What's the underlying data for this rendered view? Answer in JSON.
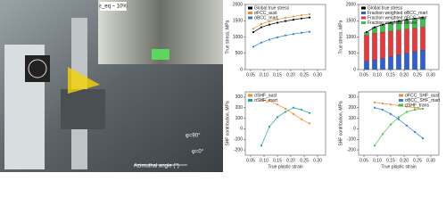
{
  "photo": {
    "strain_label": "ε_eq ~ 10%",
    "angle_90": "φ=90°",
    "angle_0": "φ=0°",
    "axis_label": "Azimuthal angle (°)"
  },
  "chart_data": [
    {
      "type": "line",
      "ylabel": "True stress, MPa",
      "xlim": [
        0.03,
        0.33
      ],
      "xticks": [
        0.05,
        {
          "value": 0.1,
          "label": "0.10"
        },
        0.15,
        {
          "value": 0.2,
          "label": "0.20"
        },
        0.25,
        {
          "value": 0.3,
          "label": "0.30"
        }
      ],
      "ylim": [
        0,
        2000
      ],
      "yticks": [
        0,
        500,
        1000,
        1500,
        2000
      ],
      "legend": "top-left",
      "x": [
        0.06,
        0.09,
        0.12,
        0.15,
        0.18,
        0.21,
        0.24,
        0.27
      ],
      "series": [
        {
          "name": "Global true stress",
          "color": "#000000",
          "values": [
            1150,
            1300,
            1380,
            1440,
            1490,
            1530,
            1570,
            1600
          ]
        },
        {
          "name": "σFCC_aust",
          "color": "#f28c28",
          "values": [
            1250,
            1400,
            1480,
            1540,
            1590,
            1630,
            1670,
            1700
          ]
        },
        {
          "name": "σBCC_mart",
          "color": "#2f7fd1",
          "values": [
            700,
            830,
            920,
            990,
            1050,
            1090,
            1130,
            1160
          ]
        }
      ]
    },
    {
      "type": "stacked-bar",
      "ylabel": "True stress, MPa",
      "xlim": [
        0.03,
        0.33
      ],
      "xticks": [
        0.05,
        {
          "value": 0.1,
          "label": "0.10"
        },
        0.15,
        {
          "value": 0.2,
          "label": "0.20"
        },
        0.25,
        {
          "value": 0.3,
          "label": "0.30"
        }
      ],
      "ylim": [
        0,
        2000
      ],
      "yticks": [
        0,
        500,
        1000,
        1500,
        2000
      ],
      "legend": "top-left",
      "x": [
        0.06,
        0.09,
        0.12,
        0.15,
        0.18,
        0.21,
        0.24,
        0.27
      ],
      "series": [
        {
          "name": "Global true stress",
          "color": "#000000",
          "type": "line",
          "values": [
            1150,
            1300,
            1380,
            1440,
            1490,
            1530,
            1570,
            1600
          ]
        },
        {
          "name": "Fraction weighted σBCC_mart",
          "color": "#2f5fd6",
          "type": "bar",
          "values": [
            250,
            300,
            350,
            400,
            450,
            500,
            550,
            600
          ]
        },
        {
          "name": "Fraction weighted σFCC_aust",
          "color": "#e8383b",
          "type": "bar",
          "values": [
            800,
            820,
            800,
            780,
            760,
            740,
            720,
            700
          ]
        },
        {
          "name": "Fraction weighted σtrans",
          "color": "#3fbf4f",
          "type": "bar",
          "values": [
            100,
            180,
            230,
            260,
            280,
            290,
            300,
            300
          ]
        }
      ]
    },
    {
      "type": "line",
      "ylabel": "SHF contribution, MPa",
      "xlabel": "True plastic strain",
      "xlim": [
        0.03,
        0.33
      ],
      "xticks": [
        0.05,
        {
          "value": 0.1,
          "label": "0.10"
        },
        0.15,
        {
          "value": 0.2,
          "label": "0.20"
        },
        0.25,
        {
          "value": 0.3,
          "label": "0.30"
        }
      ],
      "ylim": [
        -250,
        350
      ],
      "yticks": [
        -200,
        -100,
        0,
        100,
        200,
        300
      ],
      "legend": "top-left",
      "x": [
        0.09,
        0.12,
        0.15,
        0.18,
        0.21,
        0.24,
        0.27
      ],
      "series": [
        {
          "name": "σSHF_aust",
          "color": "#f28c28",
          "values": [
            270,
            265,
            230,
            190,
            140,
            90,
            50
          ]
        },
        {
          "name": "σSHF_mart",
          "color": "#1aa39a",
          "values": [
            -160,
            20,
            110,
            160,
            200,
            180,
            150
          ]
        }
      ]
    },
    {
      "type": "line",
      "ylabel": "SHF contribution, MPa",
      "xlabel": "True plastic strain",
      "xlim": [
        0.03,
        0.33
      ],
      "xticks": [
        0.05,
        {
          "value": 0.1,
          "label": "0.10"
        },
        0.15,
        {
          "value": 0.2,
          "label": "0.20"
        },
        0.25,
        {
          "value": 0.3,
          "label": "0.30"
        }
      ],
      "ylim": [
        -250,
        350
      ],
      "yticks": [
        -200,
        -100,
        0,
        100,
        200,
        300
      ],
      "legend": "top-right",
      "x": [
        0.09,
        0.12,
        0.15,
        0.18,
        0.21,
        0.24,
        0.27
      ],
      "series": [
        {
          "name": "σFCC_SHF_aust",
          "color": "#f28c28",
          "values": [
            250,
            240,
            230,
            220,
            210,
            200,
            190
          ]
        },
        {
          "name": "σBCC_SHF_mart",
          "color": "#2f7fd1",
          "values": [
            200,
            180,
            140,
            90,
            30,
            -30,
            -90
          ]
        },
        {
          "name": "σSHF_trans",
          "color": "#3fbf4f",
          "values": [
            -160,
            -50,
            40,
            110,
            160,
            180,
            190
          ]
        }
      ]
    }
  ]
}
